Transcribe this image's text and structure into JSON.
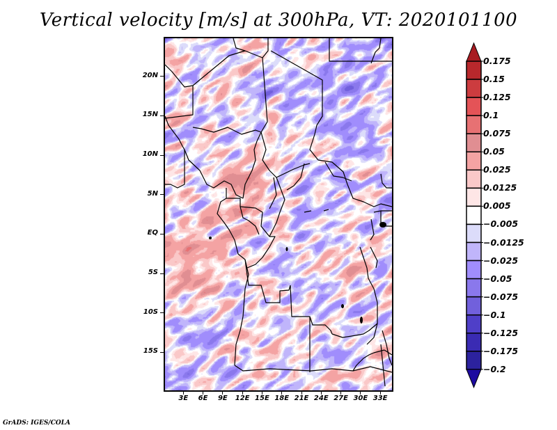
{
  "chart_data": {
    "type": "heatmap",
    "title": "Vertical velocity [m/s] at 300hPa, VT: 2020101100",
    "variable": "Vertical velocity",
    "units": "m/s",
    "level": "300hPa",
    "valid_time": "2020101100",
    "xlabel": "",
    "ylabel": "",
    "xlim_deg_east": [
      0,
      35
    ],
    "ylim_deg_north": [
      -20,
      25
    ],
    "x_ticks": [
      "3E",
      "6E",
      "9E",
      "12E",
      "15E",
      "18E",
      "21E",
      "24E",
      "27E",
      "30E",
      "33E"
    ],
    "x_tick_values": [
      3,
      6,
      9,
      12,
      15,
      18,
      21,
      24,
      27,
      30,
      33
    ],
    "y_ticks": [
      "20N",
      "15N",
      "10N",
      "5N",
      "EQ",
      "5S",
      "10S",
      "15S"
    ],
    "y_tick_values": [
      20,
      15,
      10,
      5,
      0,
      -5,
      -10,
      -15
    ],
    "grid": false,
    "overlay": "country borders and coastlines",
    "colorbar": {
      "placement": "right",
      "extend": "both",
      "labels": [
        "0.175",
        "0.15",
        "0.125",
        "0.1",
        "0.075",
        "0.05",
        "0.025",
        "0.0125",
        "0.005",
        "-0.005",
        "-0.0125",
        "-0.025",
        "-0.05",
        "-0.075",
        "-0.1",
        "-0.125",
        "-0.175",
        "-0.2"
      ],
      "levels": [
        0.175,
        0.15,
        0.125,
        0.1,
        0.075,
        0.05,
        0.025,
        0.0125,
        0.005,
        -0.005,
        -0.0125,
        -0.025,
        -0.05,
        -0.075,
        -0.1,
        -0.125,
        -0.175,
        -0.2
      ],
      "colors": [
        "#a81c22",
        "#b8282c",
        "#cc3c3f",
        "#e45357",
        "#e77173",
        "#e08e92",
        "#f4a3a3",
        "#fac8c8",
        "#fee6e6",
        "#ffffff",
        "#dcdcfa",
        "#c0b5fb",
        "#a08dfc",
        "#8a78ec",
        "#7160dc",
        "#4f3fc8",
        "#3a2bb3",
        "#2c229e",
        "#1d0aa0"
      ],
      "top_arrow_color": "#a81c22",
      "bottom_arrow_color": "#1d0aa0"
    }
  },
  "footer": {
    "credit": "GrADS: IGES/COLA"
  }
}
